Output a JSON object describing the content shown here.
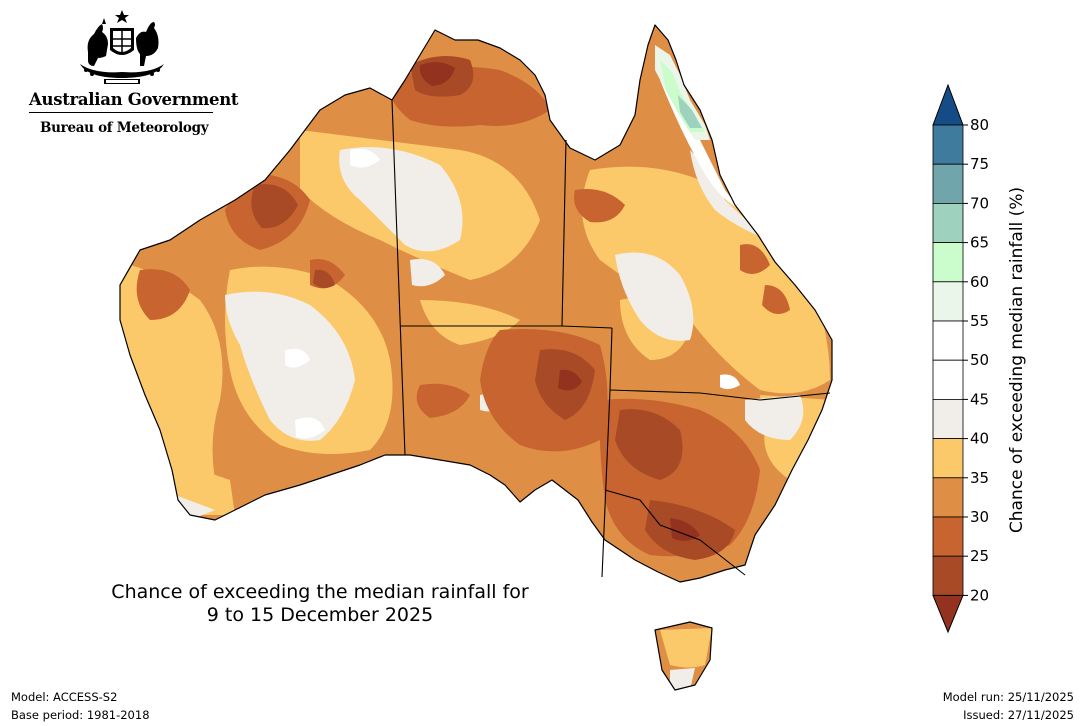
{
  "branding": {
    "government": "Australian Government",
    "agency": "Bureau of Meteorology"
  },
  "map": {
    "title_line1": "Chance of exceeding the median rainfall for",
    "title_line2": "9 to 15 December 2025"
  },
  "footer": {
    "model": "Model: ACCESS-S2",
    "base_period": "Base period: 1981-2018",
    "model_run": "Model run: 25/11/2025",
    "issued": "Issued: 27/11/2025"
  },
  "legend": {
    "label": "Chance of exceeding median rainfall (%)",
    "ticks": [
      "80",
      "75",
      "70",
      "65",
      "60",
      "55",
      "50",
      "45",
      "40",
      "35",
      "30",
      "25",
      "20"
    ],
    "colors": {
      "below20": "#93321e",
      "20-25": "#a94a27",
      "25-30": "#c8642f",
      "30-35": "#de8f45",
      "35-40": "#fcc96a",
      "40-45": "#f1ede8",
      "45-50": "#ffffff",
      "50-55": "#ffffff",
      "55-60": "#eaf6ea",
      "60-65": "#cbfccb",
      "65-70": "#9ed2be",
      "70-75": "#6fa5ab",
      "75-80": "#3f7b9d",
      "above80": "#164c85"
    }
  }
}
